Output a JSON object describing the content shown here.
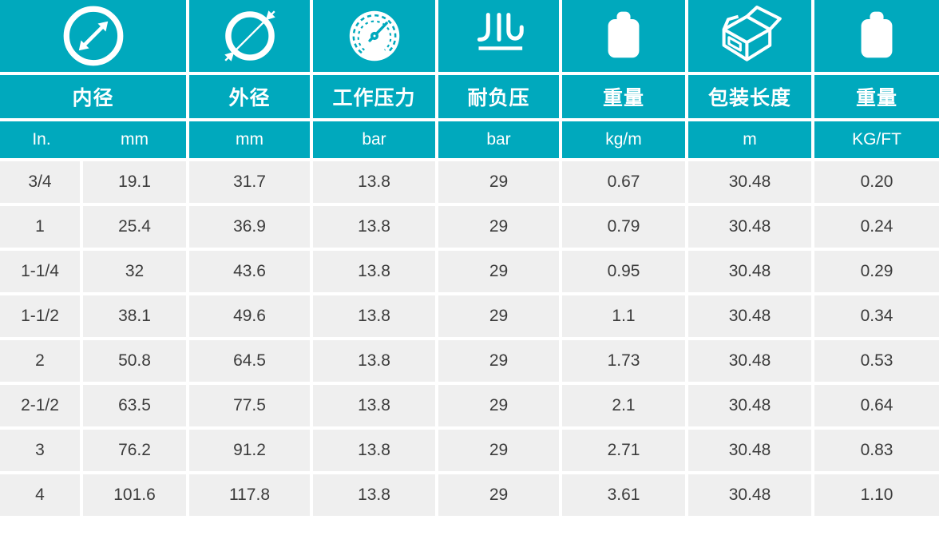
{
  "theme": {
    "teal": "#00A9BD",
    "row_bg": "#EFEFEF",
    "text_dark": "#3C3C3C",
    "white": "#FFFFFF"
  },
  "table": {
    "columns": [
      {
        "icon": "inner-diameter-icon",
        "zh": "内径",
        "units": [
          "In.",
          "mm"
        ]
      },
      {
        "icon": "outer-diameter-icon",
        "zh": "外径",
        "units": [
          "mm"
        ]
      },
      {
        "icon": "pressure-gauge-icon",
        "zh": "工作压力",
        "units": [
          "bar"
        ]
      },
      {
        "icon": "vacuum-icon",
        "zh": "耐负压",
        "units": [
          "bar"
        ]
      },
      {
        "icon": "weight-icon",
        "zh": "重量",
        "units": [
          "kg/m"
        ]
      },
      {
        "icon": "package-box-icon",
        "zh": "包装长度",
        "units": [
          "m"
        ]
      },
      {
        "icon": "weight-icon",
        "zh": "重量",
        "units": [
          "KG/FT"
        ]
      }
    ],
    "rows": [
      [
        "3/4",
        "19.1",
        "31.7",
        "13.8",
        "29",
        "0.67",
        "30.48",
        "0.20"
      ],
      [
        "1",
        "25.4",
        "36.9",
        "13.8",
        "29",
        "0.79",
        "30.48",
        "0.24"
      ],
      [
        "1-1/4",
        "32",
        "43.6",
        "13.8",
        "29",
        "0.95",
        "30.48",
        "0.29"
      ],
      [
        "1-1/2",
        "38.1",
        "49.6",
        "13.8",
        "29",
        "1.1",
        "30.48",
        "0.34"
      ],
      [
        "2",
        "50.8",
        "64.5",
        "13.8",
        "29",
        "1.73",
        "30.48",
        "0.53"
      ],
      [
        "2-1/2",
        "63.5",
        "77.5",
        "13.8",
        "29",
        "2.1",
        "30.48",
        "0.64"
      ],
      [
        "3",
        "76.2",
        "91.2",
        "13.8",
        "29",
        "2.71",
        "30.48",
        "0.83"
      ],
      [
        "4",
        "101.6",
        "117.8",
        "13.8",
        "29",
        "3.61",
        "30.48",
        "1.10"
      ]
    ]
  }
}
